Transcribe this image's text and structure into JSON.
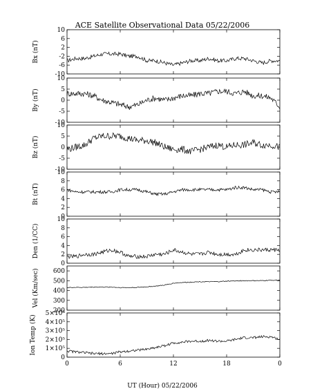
{
  "chart_data": {
    "title": "ACE Satellite Observational Data   05/22/2006",
    "xlabel": "UT (Hour)   05/22/2006",
    "x_range": [
      0,
      24
    ],
    "x_tick_labels": [
      "0",
      "6",
      "12",
      "18",
      "0"
    ],
    "panels": [
      {
        "id": "bx",
        "ylabel": "Bx (nT)",
        "ylim": [
          -10,
          10
        ],
        "yticks": [
          -10,
          -6,
          -2,
          2,
          6,
          10
        ],
        "ytick_labels": [
          "-10",
          "-6",
          "-2",
          "2",
          "6",
          "10"
        ],
        "type": "line",
        "x": [
          0,
          1,
          2,
          3,
          4,
          5,
          6,
          7,
          8,
          9,
          10,
          11,
          12,
          13,
          14,
          15,
          16,
          17,
          18,
          19,
          20,
          21,
          22,
          23,
          24
        ],
        "values": [
          -4,
          -3,
          -3,
          -2,
          -1,
          -1,
          -1,
          -2,
          -2,
          -4,
          -4,
          -5,
          -6,
          -5,
          -4,
          -4,
          -3,
          -4,
          -4,
          -3,
          -3,
          -4,
          -5,
          -4,
          -4
        ]
      },
      {
        "id": "by",
        "ylabel": "By (nT)",
        "ylim": [
          -10,
          10
        ],
        "yticks": [
          -10,
          -5,
          0,
          5,
          10
        ],
        "ytick_labels": [
          "-10",
          "-5",
          "0",
          "5",
          "10"
        ],
        "type": "line",
        "x": [
          0,
          1,
          2,
          3,
          4,
          5,
          6,
          7,
          8,
          9,
          10,
          11,
          12,
          13,
          14,
          15,
          16,
          17,
          18,
          19,
          20,
          21,
          22,
          23,
          24
        ],
        "values": [
          3,
          3,
          3,
          2,
          0,
          -1,
          -2,
          -3,
          -2,
          0,
          1,
          0,
          1,
          2,
          2,
          3,
          3,
          4,
          4,
          3,
          4,
          2,
          2,
          1,
          -3
        ]
      },
      {
        "id": "bz",
        "ylabel": "Bz (nT)",
        "ylim": [
          -10,
          10
        ],
        "yticks": [
          -10,
          -5,
          0,
          5,
          10
        ],
        "ytick_labels": [
          "-10",
          "-5",
          "0",
          "5",
          "10"
        ],
        "type": "line",
        "x": [
          0,
          1,
          2,
          3,
          4,
          5,
          6,
          7,
          8,
          9,
          10,
          11,
          12,
          13,
          14,
          15,
          16,
          17,
          18,
          19,
          20,
          21,
          22,
          23,
          24
        ],
        "values": [
          -1,
          0,
          1,
          4,
          5,
          5,
          5,
          4,
          3,
          3,
          2,
          0,
          -1,
          -1,
          -2,
          -1,
          0,
          1,
          0,
          1,
          1,
          2,
          1,
          1,
          0
        ]
      },
      {
        "id": "bt",
        "ylabel": "Bt (nT)",
        "ylim": [
          0,
          10
        ],
        "yticks": [
          0,
          2,
          4,
          6,
          8,
          10
        ],
        "ytick_labels": [
          "0",
          "2",
          "4",
          "6",
          "8",
          "10"
        ],
        "type": "line",
        "x": [
          0,
          1,
          2,
          3,
          4,
          5,
          6,
          7,
          8,
          9,
          10,
          11,
          12,
          13,
          14,
          15,
          16,
          17,
          18,
          19,
          20,
          21,
          22,
          23,
          24
        ],
        "values": [
          6,
          5.5,
          5.5,
          5.5,
          5.5,
          5.5,
          6,
          6,
          6,
          5.5,
          5,
          5,
          5.5,
          6,
          6,
          6,
          6,
          6,
          6,
          6.5,
          6.5,
          6,
          6,
          5.5,
          5.5
        ]
      },
      {
        "id": "den",
        "ylabel": "Den (1/CC)",
        "ylim": [
          0,
          10
        ],
        "yticks": [
          0,
          2,
          4,
          6,
          8,
          10
        ],
        "ytick_labels": [
          "0",
          "2",
          "4",
          "6",
          "8",
          "10"
        ],
        "type": "line",
        "x": [
          0,
          1,
          2,
          3,
          4,
          5,
          6,
          7,
          8,
          9,
          10,
          11,
          12,
          13,
          14,
          15,
          16,
          17,
          18,
          19,
          20,
          21,
          22,
          23,
          24
        ],
        "values": [
          1.5,
          1.5,
          2,
          2,
          2.5,
          3,
          2.5,
          1.5,
          1.5,
          1.5,
          2,
          2,
          3,
          2.5,
          2,
          2,
          2.5,
          2,
          2,
          2,
          3,
          3,
          3,
          3,
          3
        ]
      },
      {
        "id": "vel",
        "ylabel": "Vel (Km/sec)",
        "ylim": [
          200,
          650
        ],
        "yticks": [
          200,
          300,
          400,
          500,
          600
        ],
        "ytick_labels": [
          "200",
          "300",
          "400",
          "500",
          "600"
        ],
        "type": "line",
        "x": [
          0,
          1,
          2,
          3,
          4,
          5,
          6,
          7,
          8,
          9,
          10,
          11,
          12,
          13,
          14,
          15,
          16,
          17,
          18,
          19,
          20,
          21,
          22,
          23,
          24
        ],
        "values": [
          430,
          432,
          432,
          435,
          435,
          435,
          430,
          430,
          432,
          438,
          445,
          455,
          475,
          482,
          485,
          490,
          490,
          490,
          495,
          498,
          500,
          500,
          500,
          505,
          505
        ]
      },
      {
        "id": "temp",
        "ylabel": "Ion Temp (K)",
        "ylim": [
          0,
          500000
        ],
        "yticks": [
          0,
          100000,
          200000,
          300000,
          400000,
          500000
        ],
        "ytick_labels": [
          "0",
          "1×10⁵",
          "2×10⁵",
          "3×10⁵",
          "4×10⁵",
          "5×10⁵"
        ],
        "type": "line",
        "x": [
          0,
          1,
          2,
          3,
          4,
          5,
          6,
          7,
          8,
          9,
          10,
          11,
          12,
          13,
          14,
          15,
          16,
          17,
          18,
          19,
          20,
          21,
          22,
          23,
          24
        ],
        "values": [
          70000,
          60000,
          50000,
          40000,
          40000,
          40000,
          60000,
          70000,
          80000,
          90000,
          110000,
          130000,
          160000,
          170000,
          180000,
          180000,
          190000,
          180000,
          180000,
          200000,
          220000,
          220000,
          230000,
          230000,
          200000
        ]
      }
    ]
  }
}
